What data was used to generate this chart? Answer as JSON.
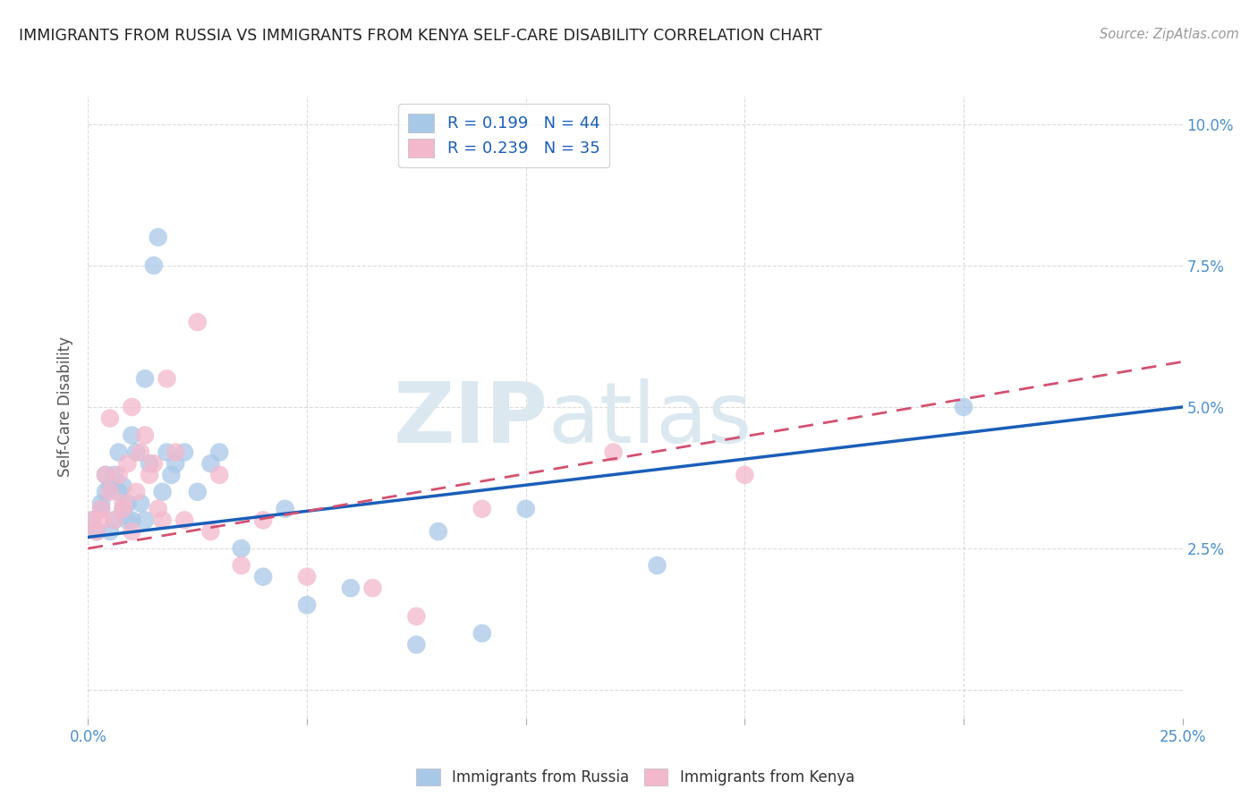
{
  "title": "IMMIGRANTS FROM RUSSIA VS IMMIGRANTS FROM KENYA SELF-CARE DISABILITY CORRELATION CHART",
  "source": "Source: ZipAtlas.com",
  "ylabel": "Self-Care Disability",
  "yticks": [
    0.0,
    0.025,
    0.05,
    0.075,
    0.1
  ],
  "ytick_labels": [
    "",
    "2.5%",
    "5.0%",
    "7.5%",
    "10.0%"
  ],
  "xticks": [
    0.0,
    0.05,
    0.1,
    0.15,
    0.2,
    0.25
  ],
  "xlim": [
    0.0,
    0.25
  ],
  "ylim": [
    -0.005,
    0.105
  ],
  "russia_color": "#a8c8e8",
  "kenya_color": "#f4b8cc",
  "russia_line_color": "#1a5eb8",
  "kenya_line_color": "#d45070",
  "legend_R_russia": "0.199",
  "legend_N_russia": "44",
  "legend_R_kenya": "0.239",
  "legend_N_kenya": "35",
  "russia_x": [
    0.001,
    0.002,
    0.003,
    0.003,
    0.004,
    0.004,
    0.005,
    0.005,
    0.006,
    0.006,
    0.007,
    0.007,
    0.008,
    0.008,
    0.009,
    0.009,
    0.01,
    0.01,
    0.011,
    0.012,
    0.013,
    0.013,
    0.014,
    0.015,
    0.016,
    0.017,
    0.018,
    0.019,
    0.02,
    0.022,
    0.025,
    0.028,
    0.03,
    0.035,
    0.04,
    0.045,
    0.05,
    0.06,
    0.075,
    0.08,
    0.09,
    0.1,
    0.13,
    0.2
  ],
  "russia_y": [
    0.03,
    0.028,
    0.032,
    0.033,
    0.035,
    0.038,
    0.028,
    0.036,
    0.03,
    0.038,
    0.042,
    0.035,
    0.032,
    0.036,
    0.03,
    0.033,
    0.03,
    0.045,
    0.042,
    0.033,
    0.03,
    0.055,
    0.04,
    0.075,
    0.08,
    0.035,
    0.042,
    0.038,
    0.04,
    0.042,
    0.035,
    0.04,
    0.042,
    0.025,
    0.02,
    0.032,
    0.015,
    0.018,
    0.008,
    0.028,
    0.01,
    0.032,
    0.022,
    0.05
  ],
  "kenya_x": [
    0.001,
    0.002,
    0.003,
    0.003,
    0.004,
    0.005,
    0.005,
    0.006,
    0.007,
    0.008,
    0.008,
    0.009,
    0.01,
    0.01,
    0.011,
    0.012,
    0.013,
    0.014,
    0.015,
    0.016,
    0.017,
    0.018,
    0.02,
    0.022,
    0.025,
    0.028,
    0.03,
    0.035,
    0.04,
    0.05,
    0.065,
    0.075,
    0.09,
    0.12,
    0.15
  ],
  "kenya_y": [
    0.03,
    0.028,
    0.03,
    0.032,
    0.038,
    0.035,
    0.048,
    0.03,
    0.038,
    0.033,
    0.032,
    0.04,
    0.028,
    0.05,
    0.035,
    0.042,
    0.045,
    0.038,
    0.04,
    0.032,
    0.03,
    0.055,
    0.042,
    0.03,
    0.065,
    0.028,
    0.038,
    0.022,
    0.03,
    0.02,
    0.018,
    0.013,
    0.032,
    0.042,
    0.038
  ],
  "background_color": "#ffffff",
  "grid_color": "#cccccc",
  "title_color": "#222222",
  "axis_tick_color": "#4a90d0",
  "watermark_top": "ZIP",
  "watermark_bottom": "atlas"
}
